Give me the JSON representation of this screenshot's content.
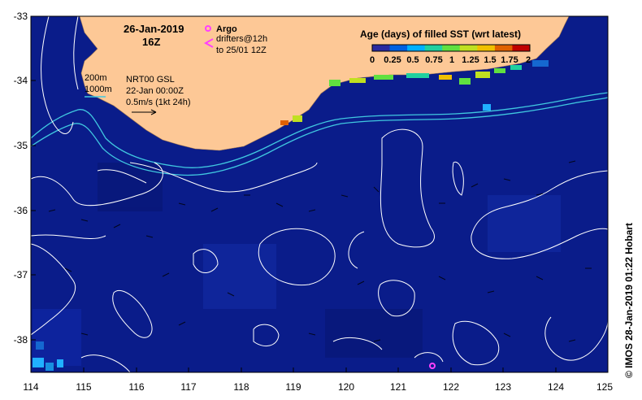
{
  "header": {
    "date": "26-Jan-2019",
    "time": "16Z"
  },
  "legend": {
    "argo_label": "Argo",
    "drifters_line1": "drifters@12h",
    "drifters_line2": "to 25/01 12Z",
    "isobath_200": "200m",
    "isobath_1000": "1000m",
    "product": "NRT00 GSL",
    "product_date": "22-Jan 00:00Z",
    "vector_scale": "0.5m/s (1kt 24h)"
  },
  "colorbar": {
    "title": "Age (days) of filled SST (wrt latest)",
    "tick_labels": [
      "0",
      "0.25",
      "0.5",
      "0.75",
      "1",
      "1.25",
      "1.5",
      "1.75",
      "2"
    ],
    "colors": [
      "#2a2aa0",
      "#0060e0",
      "#00b0ff",
      "#20d0a0",
      "#60e040",
      "#c0e020",
      "#f0c000",
      "#e06000",
      "#c00000"
    ]
  },
  "axes": {
    "x_ticks": [
      "114",
      "115",
      "116",
      "117",
      "118",
      "119",
      "120",
      "121",
      "122",
      "123",
      "124",
      "125"
    ],
    "y_ticks": [
      "-33",
      "-34",
      "-35",
      "-36",
      "-37",
      "-38"
    ],
    "xlim": [
      114,
      125
    ],
    "ylim": [
      -38.5,
      -33
    ]
  },
  "credit": "© IMOS 28-Jan-2019 01:22 Hobart",
  "colors": {
    "ocean": "#0a1c8a",
    "land": "#fdc896",
    "isobath": "#40c8e0",
    "contour": "#ffffff",
    "argo": "#ff40ff"
  }
}
